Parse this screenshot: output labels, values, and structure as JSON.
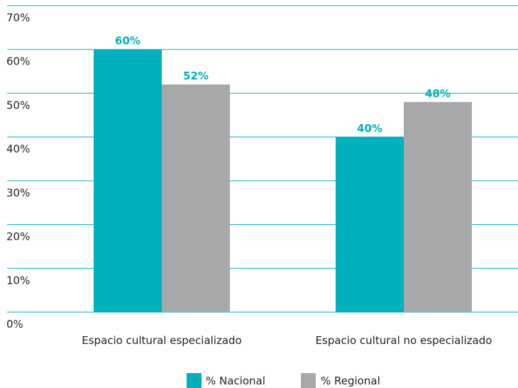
{
  "chart_data": {
    "type": "bar",
    "categories": [
      "Espacio cultural especializado",
      "Espacio cultural no especializado"
    ],
    "series": [
      {
        "name": "% Nacional",
        "values": [
          60,
          40
        ],
        "labels": [
          "60%",
          "40%"
        ],
        "color": "#00B0BD"
      },
      {
        "name": "% Regional",
        "values": [
          52,
          48
        ],
        "labels": [
          "52%",
          "48%"
        ],
        "color": "#A7A8AA"
      }
    ],
    "ylim": [
      0,
      70
    ],
    "yticks": [
      {
        "value": 0,
        "label": "0%"
      },
      {
        "value": 10,
        "label": "10%"
      },
      {
        "value": 20,
        "label": "20%"
      },
      {
        "value": 30,
        "label": "30%"
      },
      {
        "value": 40,
        "label": "40%"
      },
      {
        "value": 50,
        "label": "50%"
      },
      {
        "value": 60,
        "label": "60%"
      },
      {
        "value": 70,
        "label": "70%"
      }
    ],
    "grid": true,
    "grid_color": "#00B0BD",
    "data_label_color": "#00B0BD",
    "legend_position": "bottom-center"
  }
}
